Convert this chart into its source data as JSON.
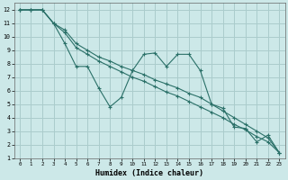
{
  "xlabel": "Humidex (Indice chaleur)",
  "ylabel": "",
  "xlim": [
    -0.5,
    23.5
  ],
  "ylim": [
    1,
    12.5
  ],
  "yticks": [
    1,
    2,
    3,
    4,
    5,
    6,
    7,
    8,
    9,
    10,
    11,
    12
  ],
  "xticks": [
    0,
    1,
    2,
    3,
    4,
    5,
    6,
    7,
    8,
    9,
    10,
    11,
    12,
    13,
    14,
    15,
    16,
    17,
    18,
    19,
    20,
    21,
    22,
    23
  ],
  "background_color": "#cce8e8",
  "grid_color": "#aacccc",
  "line_color": "#2a7068",
  "series": [
    {
      "x": [
        0,
        1,
        2,
        3,
        4,
        5,
        6,
        7,
        8,
        9,
        10,
        11,
        12,
        13,
        14,
        15,
        16,
        17,
        18,
        19,
        20,
        21,
        22,
        23
      ],
      "y": [
        12,
        12,
        12,
        11,
        9.5,
        7.8,
        7.8,
        6.2,
        4.8,
        5.5,
        7.5,
        8.7,
        8.8,
        7.8,
        8.7,
        8.7,
        7.5,
        5.0,
        4.7,
        3.3,
        3.2,
        2.2,
        2.7,
        1.4
      ]
    },
    {
      "x": [
        0,
        1,
        2,
        3,
        4,
        5,
        6,
        7,
        8,
        9,
        10,
        11,
        12,
        13,
        14,
        15,
        16,
        17,
        18,
        19,
        20,
        21,
        22,
        23
      ],
      "y": [
        12,
        12,
        12,
        11,
        10.5,
        9.5,
        9.0,
        8.5,
        8.2,
        7.8,
        7.5,
        7.2,
        6.8,
        6.5,
        6.2,
        5.8,
        5.5,
        5.0,
        4.5,
        4.0,
        3.5,
        3.0,
        2.5,
        1.4
      ]
    },
    {
      "x": [
        0,
        1,
        2,
        3,
        4,
        5,
        6,
        7,
        8,
        9,
        10,
        11,
        12,
        13,
        14,
        15,
        16,
        17,
        18,
        19,
        20,
        21,
        22,
        23
      ],
      "y": [
        12,
        12,
        12,
        11,
        10.3,
        9.2,
        8.7,
        8.2,
        7.8,
        7.4,
        7.0,
        6.7,
        6.3,
        5.9,
        5.6,
        5.2,
        4.8,
        4.4,
        4.0,
        3.5,
        3.1,
        2.6,
        2.2,
        1.4
      ]
    }
  ]
}
